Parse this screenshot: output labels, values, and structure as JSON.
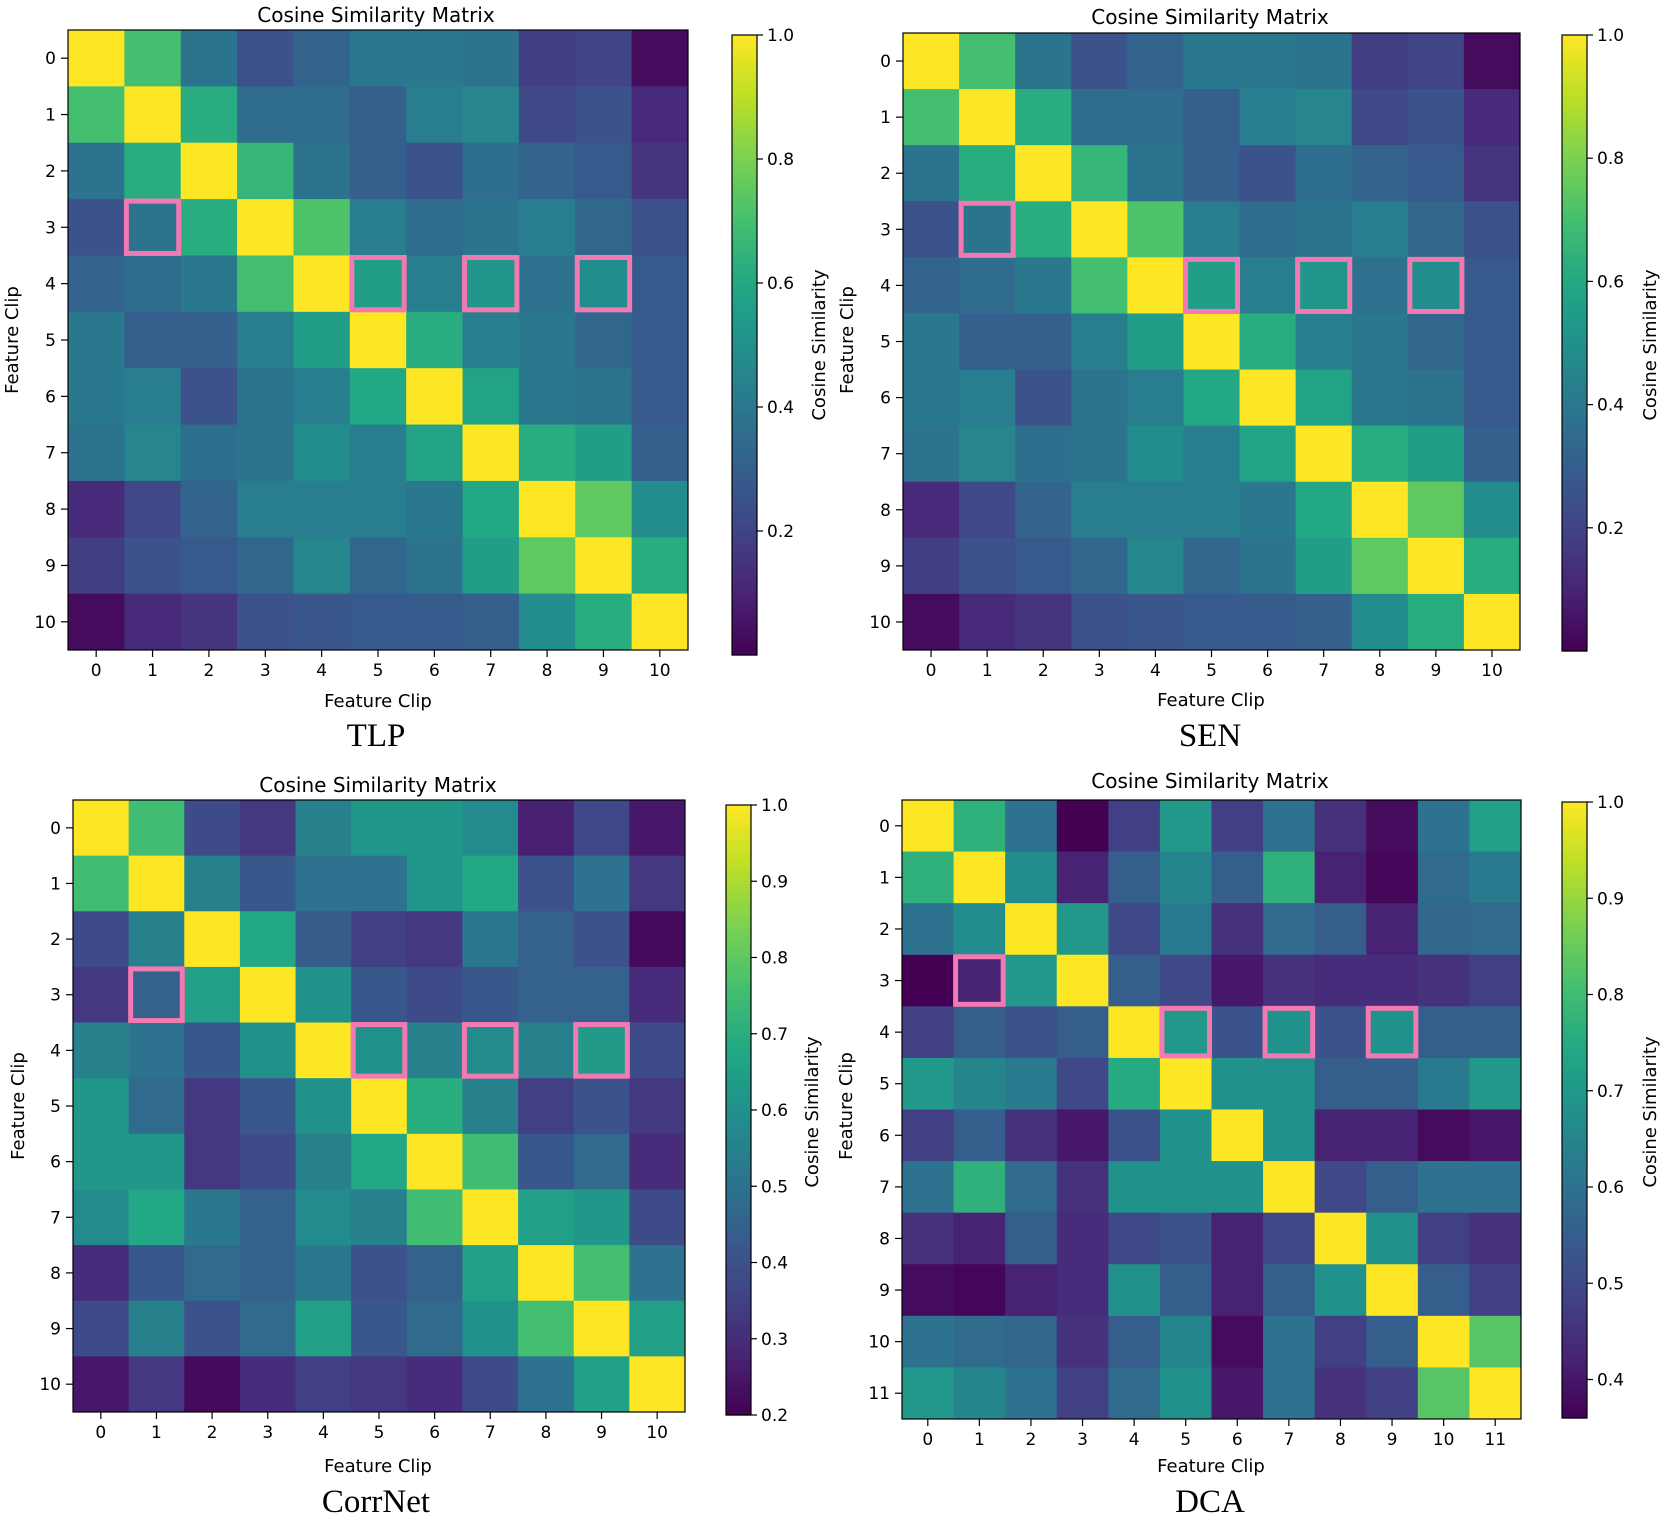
{
  "chart_data": [
    {
      "type": "heatmap",
      "title": "Cosine Similarity Matrix",
      "caption": "TLP",
      "xlabel": "Feature Clip",
      "ylabel": "Feature Clip",
      "colorbar_label": "Cosine Similarity",
      "colormap": "viridis",
      "vmin": 0.0,
      "vmax": 1.0,
      "colorbar_ticks": [
        "0.2",
        "0.4",
        "0.6",
        "0.8",
        "1.0"
      ],
      "colorbar_tick_values": [
        0.2,
        0.4,
        0.6,
        0.8,
        1.0
      ],
      "labels": [
        "0",
        "1",
        "2",
        "3",
        "4",
        "5",
        "6",
        "7",
        "8",
        "9",
        "10"
      ],
      "matrix": [
        [
          1.0,
          0.7,
          0.38,
          0.25,
          0.32,
          0.4,
          0.4,
          0.38,
          0.18,
          0.2,
          0.03
        ],
        [
          0.7,
          1.0,
          0.62,
          0.35,
          0.35,
          0.3,
          0.42,
          0.45,
          0.22,
          0.25,
          0.12
        ],
        [
          0.38,
          0.62,
          1.0,
          0.66,
          0.38,
          0.3,
          0.25,
          0.36,
          0.32,
          0.28,
          0.15
        ],
        [
          0.25,
          0.38,
          0.62,
          1.0,
          0.72,
          0.42,
          0.35,
          0.38,
          0.42,
          0.33,
          0.25
        ],
        [
          0.32,
          0.35,
          0.4,
          0.7,
          1.0,
          0.55,
          0.42,
          0.52,
          0.37,
          0.48,
          0.28
        ],
        [
          0.4,
          0.3,
          0.3,
          0.42,
          0.55,
          1.0,
          0.62,
          0.42,
          0.4,
          0.33,
          0.28
        ],
        [
          0.4,
          0.42,
          0.25,
          0.38,
          0.42,
          0.6,
          1.0,
          0.58,
          0.4,
          0.38,
          0.28
        ],
        [
          0.38,
          0.45,
          0.36,
          0.38,
          0.48,
          0.42,
          0.58,
          1.0,
          0.62,
          0.55,
          0.3
        ],
        [
          0.12,
          0.22,
          0.32,
          0.42,
          0.42,
          0.42,
          0.4,
          0.6,
          1.0,
          0.75,
          0.48
        ],
        [
          0.18,
          0.25,
          0.28,
          0.33,
          0.46,
          0.33,
          0.38,
          0.55,
          0.75,
          1.0,
          0.62
        ],
        [
          0.03,
          0.12,
          0.15,
          0.25,
          0.27,
          0.28,
          0.28,
          0.3,
          0.48,
          0.62,
          1.0
        ]
      ],
      "highlighted_cells": [
        [
          3,
          1
        ],
        [
          4,
          5
        ],
        [
          4,
          7
        ],
        [
          4,
          9
        ]
      ]
    },
    {
      "type": "heatmap",
      "title": "Cosine Similarity Matrix",
      "caption": "SEN",
      "xlabel": "Feature Clip",
      "ylabel": "Feature Clip",
      "colorbar_label": "Cosine Similarity",
      "colormap": "viridis",
      "vmin": 0.0,
      "vmax": 1.0,
      "colorbar_ticks": [
        "0.2",
        "0.4",
        "0.6",
        "0.8",
        "1.0"
      ],
      "colorbar_tick_values": [
        0.2,
        0.4,
        0.6,
        0.8,
        1.0
      ],
      "labels": [
        "0",
        "1",
        "2",
        "3",
        "4",
        "5",
        "6",
        "7",
        "8",
        "9",
        "10"
      ],
      "matrix": [
        [
          1.0,
          0.7,
          0.38,
          0.25,
          0.32,
          0.4,
          0.4,
          0.38,
          0.18,
          0.2,
          0.03
        ],
        [
          0.7,
          1.0,
          0.62,
          0.35,
          0.35,
          0.3,
          0.42,
          0.45,
          0.22,
          0.25,
          0.12
        ],
        [
          0.38,
          0.62,
          1.0,
          0.66,
          0.38,
          0.3,
          0.25,
          0.36,
          0.32,
          0.28,
          0.15
        ],
        [
          0.25,
          0.38,
          0.62,
          1.0,
          0.72,
          0.42,
          0.35,
          0.38,
          0.42,
          0.33,
          0.25
        ],
        [
          0.32,
          0.35,
          0.4,
          0.7,
          1.0,
          0.55,
          0.42,
          0.52,
          0.37,
          0.48,
          0.28
        ],
        [
          0.4,
          0.3,
          0.3,
          0.42,
          0.55,
          1.0,
          0.62,
          0.42,
          0.4,
          0.33,
          0.28
        ],
        [
          0.4,
          0.42,
          0.25,
          0.38,
          0.42,
          0.6,
          1.0,
          0.58,
          0.4,
          0.38,
          0.28
        ],
        [
          0.38,
          0.45,
          0.36,
          0.38,
          0.48,
          0.42,
          0.58,
          1.0,
          0.62,
          0.55,
          0.3
        ],
        [
          0.12,
          0.22,
          0.32,
          0.42,
          0.42,
          0.42,
          0.4,
          0.6,
          1.0,
          0.75,
          0.48
        ],
        [
          0.18,
          0.25,
          0.28,
          0.33,
          0.46,
          0.33,
          0.38,
          0.55,
          0.75,
          1.0,
          0.62
        ],
        [
          0.03,
          0.12,
          0.15,
          0.25,
          0.27,
          0.28,
          0.28,
          0.3,
          0.48,
          0.62,
          1.0
        ]
      ],
      "highlighted_cells": [
        [
          3,
          1
        ],
        [
          4,
          5
        ],
        [
          4,
          7
        ],
        [
          4,
          9
        ]
      ]
    },
    {
      "type": "heatmap",
      "title": "Cosine Similarity Matrix",
      "caption": "CorrNet",
      "xlabel": "Feature Clip",
      "ylabel": "Feature Clip",
      "colorbar_label": "Cosine Similarity",
      "colormap": "viridis",
      "vmin": 0.2,
      "vmax": 1.0,
      "colorbar_ticks": [
        "0.2",
        "0.3",
        "0.4",
        "0.5",
        "0.6",
        "0.7",
        "0.8",
        "0.9",
        "1.0"
      ],
      "colorbar_tick_values": [
        0.2,
        0.3,
        0.4,
        0.5,
        0.6,
        0.7,
        0.8,
        0.9,
        1.0
      ],
      "labels": [
        "0",
        "1",
        "2",
        "3",
        "4",
        "5",
        "6",
        "7",
        "8",
        "9",
        "10"
      ],
      "matrix": [
        [
          1.0,
          0.75,
          0.38,
          0.33,
          0.55,
          0.62,
          0.62,
          0.58,
          0.27,
          0.37,
          0.25
        ],
        [
          0.75,
          1.0,
          0.55,
          0.42,
          0.5,
          0.5,
          0.62,
          0.68,
          0.4,
          0.5,
          0.33
        ],
        [
          0.38,
          0.55,
          1.0,
          0.68,
          0.43,
          0.35,
          0.33,
          0.52,
          0.45,
          0.4,
          0.22
        ],
        [
          0.33,
          0.45,
          0.65,
          1.0,
          0.6,
          0.42,
          0.38,
          0.42,
          0.45,
          0.45,
          0.3
        ],
        [
          0.55,
          0.5,
          0.42,
          0.6,
          1.0,
          0.6,
          0.55,
          0.58,
          0.55,
          0.63,
          0.38
        ],
        [
          0.62,
          0.48,
          0.33,
          0.42,
          0.6,
          1.0,
          0.7,
          0.55,
          0.35,
          0.4,
          0.33
        ],
        [
          0.62,
          0.62,
          0.33,
          0.38,
          0.55,
          0.68,
          1.0,
          0.75,
          0.42,
          0.48,
          0.3
        ],
        [
          0.58,
          0.68,
          0.52,
          0.45,
          0.58,
          0.55,
          0.75,
          1.0,
          0.65,
          0.62,
          0.38
        ],
        [
          0.3,
          0.42,
          0.48,
          0.45,
          0.52,
          0.4,
          0.45,
          0.65,
          1.0,
          0.76,
          0.5
        ],
        [
          0.38,
          0.55,
          0.4,
          0.48,
          0.65,
          0.42,
          0.48,
          0.6,
          0.76,
          1.0,
          0.65
        ],
        [
          0.25,
          0.33,
          0.22,
          0.3,
          0.35,
          0.33,
          0.3,
          0.38,
          0.5,
          0.65,
          1.0
        ]
      ],
      "highlighted_cells": [
        [
          3,
          1
        ],
        [
          4,
          5
        ],
        [
          4,
          7
        ],
        [
          4,
          9
        ]
      ]
    },
    {
      "type": "heatmap",
      "title": "Cosine Similarity Matrix",
      "caption": "DCA",
      "xlabel": "Feature Clip",
      "ylabel": "Feature Clip",
      "colorbar_label": "Cosine Similarity",
      "colormap": "viridis",
      "vmin": 0.36,
      "vmax": 1.0,
      "colorbar_ticks": [
        "0.4",
        "0.5",
        "0.6",
        "0.7",
        "0.8",
        "0.9",
        "1.0"
      ],
      "colorbar_tick_values": [
        0.4,
        0.5,
        0.6,
        0.7,
        0.8,
        0.9,
        1.0
      ],
      "labels": [
        "0",
        "1",
        "2",
        "3",
        "4",
        "5",
        "6",
        "7",
        "8",
        "9",
        "10",
        "11"
      ],
      "matrix": [
        [
          1.0,
          0.77,
          0.6,
          0.36,
          0.48,
          0.7,
          0.48,
          0.6,
          0.45,
          0.38,
          0.6,
          0.72
        ],
        [
          0.77,
          1.0,
          0.67,
          0.42,
          0.55,
          0.65,
          0.55,
          0.77,
          0.42,
          0.37,
          0.58,
          0.62
        ],
        [
          0.6,
          0.67,
          1.0,
          0.7,
          0.5,
          0.62,
          0.45,
          0.58,
          0.55,
          0.42,
          0.57,
          0.58
        ],
        [
          0.36,
          0.42,
          0.7,
          1.0,
          0.55,
          0.5,
          0.4,
          0.45,
          0.44,
          0.44,
          0.45,
          0.48
        ],
        [
          0.48,
          0.55,
          0.52,
          0.55,
          1.0,
          0.7,
          0.52,
          0.68,
          0.52,
          0.68,
          0.55,
          0.55
        ],
        [
          0.7,
          0.65,
          0.62,
          0.5,
          0.75,
          1.0,
          0.68,
          0.68,
          0.55,
          0.55,
          0.62,
          0.7
        ],
        [
          0.48,
          0.55,
          0.45,
          0.4,
          0.52,
          0.68,
          1.0,
          0.68,
          0.42,
          0.42,
          0.38,
          0.4
        ],
        [
          0.6,
          0.77,
          0.58,
          0.45,
          0.68,
          0.68,
          0.68,
          1.0,
          0.5,
          0.55,
          0.6,
          0.6
        ],
        [
          0.45,
          0.42,
          0.55,
          0.44,
          0.5,
          0.52,
          0.42,
          0.5,
          1.0,
          0.68,
          0.48,
          0.45
        ],
        [
          0.38,
          0.37,
          0.42,
          0.44,
          0.68,
          0.55,
          0.42,
          0.55,
          0.68,
          1.0,
          0.55,
          0.48
        ],
        [
          0.6,
          0.58,
          0.57,
          0.45,
          0.55,
          0.65,
          0.38,
          0.6,
          0.48,
          0.55,
          1.0,
          0.83
        ],
        [
          0.7,
          0.65,
          0.6,
          0.48,
          0.58,
          0.68,
          0.4,
          0.6,
          0.45,
          0.48,
          0.83,
          1.0
        ]
      ],
      "highlighted_cells": [
        [
          3,
          1
        ],
        [
          4,
          5
        ],
        [
          4,
          7
        ],
        [
          4,
          9
        ]
      ]
    }
  ],
  "colors": {
    "highlight": "#f07ab1",
    "axis": "#000000",
    "background": "#ffffff"
  }
}
